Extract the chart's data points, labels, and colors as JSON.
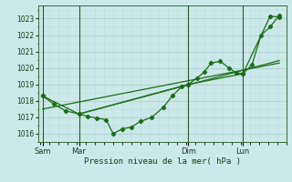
{
  "background_color": "#cce8e8",
  "grid_major_color": "#aad0d0",
  "grid_minor_color": "#bbdede",
  "line_color": "#1a6e1a",
  "title": "Pression niveau de la mer( hPa )",
  "ylabel_ticks": [
    1016,
    1017,
    1018,
    1019,
    1020,
    1021,
    1022,
    1023
  ],
  "x_tick_labels": [
    "Sam",
    "Mar",
    "Dim",
    "Lun"
  ],
  "x_tick_positions": [
    0.5,
    8.5,
    32.5,
    44.5
  ],
  "x_vline_positions": [
    0.5,
    8.5,
    32.5,
    44.5
  ],
  "line1_x": [
    0.5,
    3,
    5.5,
    8.5,
    10.5,
    12.5,
    14.5,
    16,
    18,
    20,
    22,
    24.5,
    27,
    29,
    31,
    32.5,
    34.5,
    36,
    37.5,
    39.5,
    41.5,
    43,
    44.5,
    46.5,
    48.5,
    50.5,
    52.5
  ],
  "line1_y": [
    1018.3,
    1017.8,
    1017.4,
    1017.2,
    1017.05,
    1016.95,
    1016.85,
    1016.0,
    1016.3,
    1016.4,
    1016.75,
    1017.0,
    1017.6,
    1018.3,
    1018.85,
    1019.0,
    1019.4,
    1019.75,
    1020.3,
    1020.4,
    1020.0,
    1019.7,
    1019.65,
    1020.2,
    1022.0,
    1022.5,
    1023.2
  ],
  "line2_x": [
    0.5,
    8.5,
    32.5,
    44.5,
    50.5,
    52.5
  ],
  "line2_y": [
    1018.3,
    1017.2,
    1019.0,
    1019.65,
    1023.15,
    1023.1
  ],
  "line3_x": [
    0.5,
    52.5
  ],
  "line3_y": [
    1017.5,
    1020.3
  ],
  "line4_x": [
    8.5,
    52.5
  ],
  "line4_y": [
    1017.2,
    1020.45
  ],
  "ylim": [
    1015.5,
    1023.8
  ],
  "xlim": [
    -0.5,
    54
  ]
}
